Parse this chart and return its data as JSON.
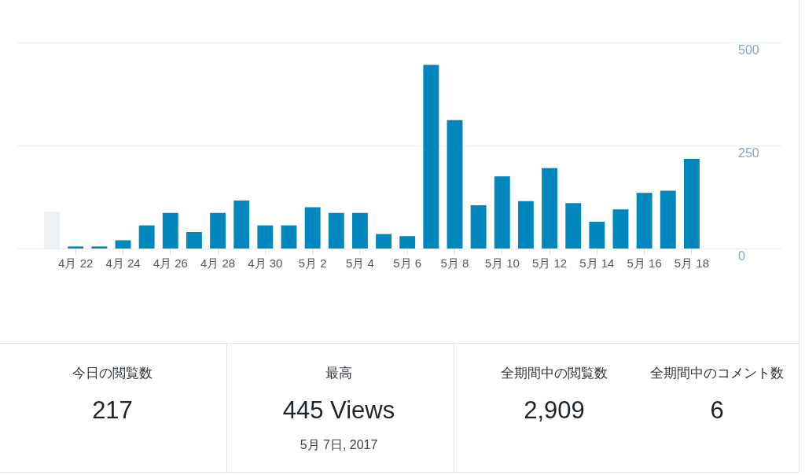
{
  "chart_data": {
    "type": "bar",
    "categories": [
      null,
      "4月 22",
      null,
      "4月 24",
      null,
      "4月 26",
      null,
      "4月 28",
      null,
      "4月 30",
      null,
      "5月 2",
      null,
      "5月 4",
      null,
      "5月 6",
      null,
      "5月 8",
      null,
      "5月 10",
      null,
      "5月 12",
      null,
      "5月 14",
      null,
      "5月 16",
      null,
      "5月 18"
    ],
    "values": [
      89,
      5,
      5,
      20,
      56,
      86,
      40,
      86,
      116,
      56,
      56,
      100,
      86,
      86,
      35,
      30,
      445,
      311,
      105,
      175,
      115,
      195,
      110,
      65,
      95,
      135,
      140,
      217
    ],
    "colors": [
      "#eef1f4",
      "#0087be",
      "#0087be",
      "#0087be",
      "#0087be",
      "#0087be",
      "#0087be",
      "#0087be",
      "#0087be",
      "#0087be",
      "#0087be",
      "#0087be",
      "#0087be",
      "#0087be",
      "#0087be",
      "#0087be",
      "#0087be",
      "#0087be",
      "#0087be",
      "#0087be",
      "#0087be",
      "#0087be",
      "#0087be",
      "#0087be",
      "#0087be",
      "#0087be",
      "#0087be",
      "#0087be"
    ],
    "ylim": [
      0,
      500
    ],
    "yticks": [
      0,
      250,
      500
    ],
    "grid": "y",
    "annotations": [
      "今日の閲覧数",
      "217",
      "最高",
      "445 Views",
      "5月 7日, 2017",
      "全期間中の閲覧数",
      "2,909",
      "全期間中のコメント数",
      "6"
    ]
  }
}
